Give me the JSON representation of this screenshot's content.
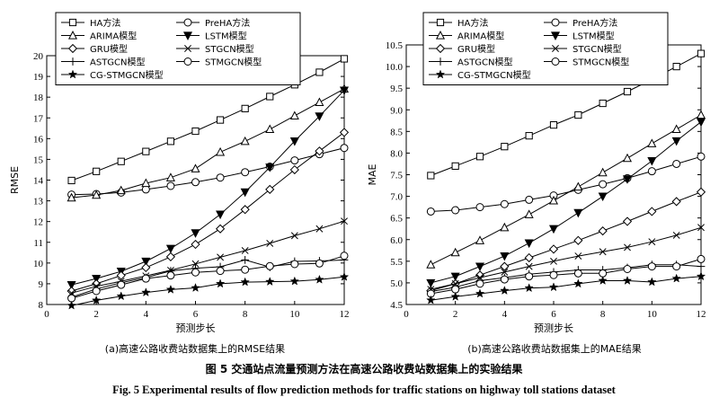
{
  "figure": {
    "caption_cn": "图 5   交通站点流量预测方法在高速公路收费站数据集上的实验结果",
    "caption_en": "Fig. 5   Experimental results of flow prediction methods for traffic stations on highway toll stations dataset"
  },
  "chart_data": [
    {
      "type": "line",
      "subcaption": "(a)高速公路收费站数据集上的RMSE结果",
      "xlabel": "预测步长",
      "ylabel": "RMSE",
      "xlim": [
        0,
        12
      ],
      "ylim": [
        8,
        20
      ],
      "xticks": [
        0,
        2,
        4,
        6,
        8,
        10,
        12
      ],
      "yticks": [
        8,
        9,
        10,
        11,
        12,
        13,
        14,
        15,
        16,
        17,
        18,
        19,
        20
      ],
      "x": [
        1,
        2,
        3,
        4,
        5,
        6,
        7,
        8,
        9,
        10,
        11,
        12
      ],
      "legend_position": "top-left",
      "series": [
        {
          "name": "HA方法",
          "marker": "square",
          "values": [
            13.98,
            14.42,
            14.9,
            15.38,
            15.87,
            16.36,
            16.9,
            17.45,
            18.03,
            18.6,
            19.2,
            19.85
          ]
        },
        {
          "name": "PreHA方法",
          "marker": "circle",
          "values": [
            13.3,
            13.33,
            13.4,
            13.55,
            13.72,
            13.9,
            14.12,
            14.38,
            14.65,
            14.95,
            15.25,
            15.55
          ]
        },
        {
          "name": "ARIMA模型",
          "marker": "triangle",
          "values": [
            13.15,
            13.28,
            13.5,
            13.85,
            14.12,
            14.55,
            15.35,
            15.87,
            16.45,
            17.1,
            17.75,
            18.4
          ]
        },
        {
          "name": "LSTM模型",
          "marker": "triangle-down",
          "values": [
            8.95,
            9.25,
            9.6,
            10.08,
            10.7,
            11.45,
            12.35,
            13.42,
            14.62,
            15.88,
            17.08,
            18.33
          ]
        },
        {
          "name": "GRU模型",
          "marker": "diamond",
          "values": [
            8.65,
            9.0,
            9.4,
            9.78,
            10.3,
            10.9,
            11.65,
            12.58,
            13.55,
            14.5,
            15.4,
            16.3
          ]
        },
        {
          "name": "STGCN模型",
          "marker": "x",
          "values": [
            8.55,
            8.88,
            9.12,
            9.38,
            9.65,
            9.96,
            10.28,
            10.6,
            10.95,
            11.32,
            11.65,
            12.02
          ]
        },
        {
          "name": "ASTGCN模型",
          "marker": "plus",
          "values": [
            8.35,
            8.75,
            9.05,
            9.3,
            9.62,
            9.75,
            9.82,
            10.15,
            9.8,
            10.08,
            10.1,
            10.15
          ]
        },
        {
          "name": "STMGCN模型",
          "marker": "circle",
          "values": [
            8.3,
            8.65,
            8.95,
            9.25,
            9.4,
            9.55,
            9.62,
            9.68,
            9.85,
            9.95,
            9.98,
            10.35
          ]
        },
        {
          "name": "CG-STMGCN模型",
          "marker": "star",
          "values": [
            7.95,
            8.2,
            8.4,
            8.58,
            8.72,
            8.8,
            9.0,
            9.08,
            9.1,
            9.12,
            9.2,
            9.33
          ]
        }
      ]
    },
    {
      "type": "line",
      "subcaption": "(b)高速公路收费站数据集上的MAE结果",
      "xlabel": "预测步长",
      "ylabel": "MAE",
      "xlim": [
        0,
        12
      ],
      "ylim": [
        4.5,
        10.5
      ],
      "xticks": [
        0,
        2,
        4,
        6,
        8,
        10,
        12
      ],
      "yticks": [
        4.5,
        5.0,
        5.5,
        6.0,
        6.5,
        7.0,
        7.5,
        8.0,
        8.5,
        9.0,
        9.5,
        10.0,
        10.5
      ],
      "x": [
        1,
        2,
        3,
        4,
        5,
        6,
        7,
        8,
        9,
        10,
        11,
        12
      ],
      "legend_position": "top-left",
      "series": [
        {
          "name": "HA方法",
          "marker": "square",
          "values": [
            7.48,
            7.7,
            7.92,
            8.15,
            8.4,
            8.65,
            8.88,
            9.15,
            9.42,
            9.7,
            10.0,
            10.3
          ]
        },
        {
          "name": "PreHA方法",
          "marker": "circle",
          "values": [
            6.65,
            6.68,
            6.75,
            6.82,
            6.92,
            7.02,
            7.15,
            7.28,
            7.42,
            7.58,
            7.75,
            7.92
          ]
        },
        {
          "name": "ARIMA模型",
          "marker": "triangle",
          "values": [
            5.42,
            5.7,
            5.98,
            6.28,
            6.58,
            6.9,
            7.22,
            7.55,
            7.88,
            8.22,
            8.55,
            8.88
          ]
        },
        {
          "name": "LSTM模型",
          "marker": "triangle-down",
          "values": [
            5.0,
            5.15,
            5.38,
            5.62,
            5.92,
            6.25,
            6.62,
            7.0,
            7.4,
            7.82,
            8.28,
            8.72
          ]
        },
        {
          "name": "GRU模型",
          "marker": "diamond",
          "values": [
            4.82,
            4.98,
            5.18,
            5.38,
            5.58,
            5.78,
            5.98,
            6.2,
            6.42,
            6.65,
            6.88,
            7.1
          ]
        },
        {
          "name": "STGCN模型",
          "marker": "x",
          "values": [
            4.85,
            4.98,
            5.12,
            5.25,
            5.38,
            5.5,
            5.62,
            5.72,
            5.82,
            5.95,
            6.1,
            6.28
          ]
        },
        {
          "name": "ASTGCN模型",
          "marker": "plus",
          "values": [
            4.8,
            4.9,
            5.05,
            5.12,
            5.2,
            5.25,
            5.3,
            5.3,
            5.35,
            5.42,
            5.42,
            5.38
          ]
        },
        {
          "name": "STMGCN模型",
          "marker": "circle",
          "values": [
            4.75,
            4.85,
            4.98,
            5.08,
            5.15,
            5.18,
            5.22,
            5.22,
            5.32,
            5.38,
            5.38,
            5.55
          ]
        },
        {
          "name": "CG-STMGCN模型",
          "marker": "star",
          "values": [
            4.6,
            4.68,
            4.75,
            4.82,
            4.88,
            4.9,
            4.98,
            5.05,
            5.05,
            5.02,
            5.1,
            5.15
          ]
        }
      ]
    }
  ]
}
